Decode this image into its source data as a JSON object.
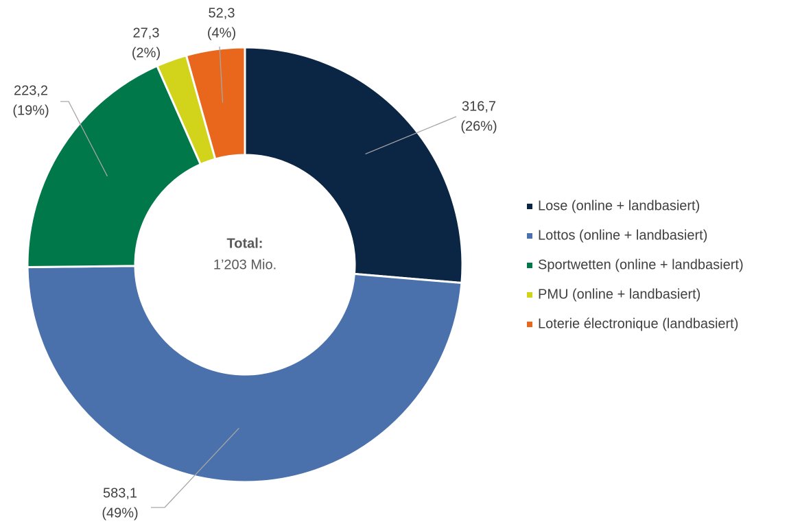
{
  "chart_data": {
    "type": "pie",
    "categories": [
      "Lose (online + landbasiert)",
      "Lottos (online + landbasiert)",
      "Sportwetten (online + landbasiert)",
      "PMU (online + landbasiert)",
      "Loterie électronique (landbasiert)"
    ],
    "values": [
      316.7,
      583.1,
      223.2,
      27.3,
      52.3
    ],
    "value_labels": [
      "316,7",
      "583,1",
      "223,2",
      "27,3",
      "52,3"
    ],
    "percent_labels": [
      "(26%)",
      "(49%)",
      "(19%)",
      "(2%)",
      "(4%)"
    ],
    "colors": [
      "#0b2545",
      "#4a71ab",
      "#00784a",
      "#d2d41c",
      "#e8671c"
    ],
    "center_title": "Total:",
    "center_value": "1’203 Mio.",
    "donut": true,
    "legend": "right"
  }
}
